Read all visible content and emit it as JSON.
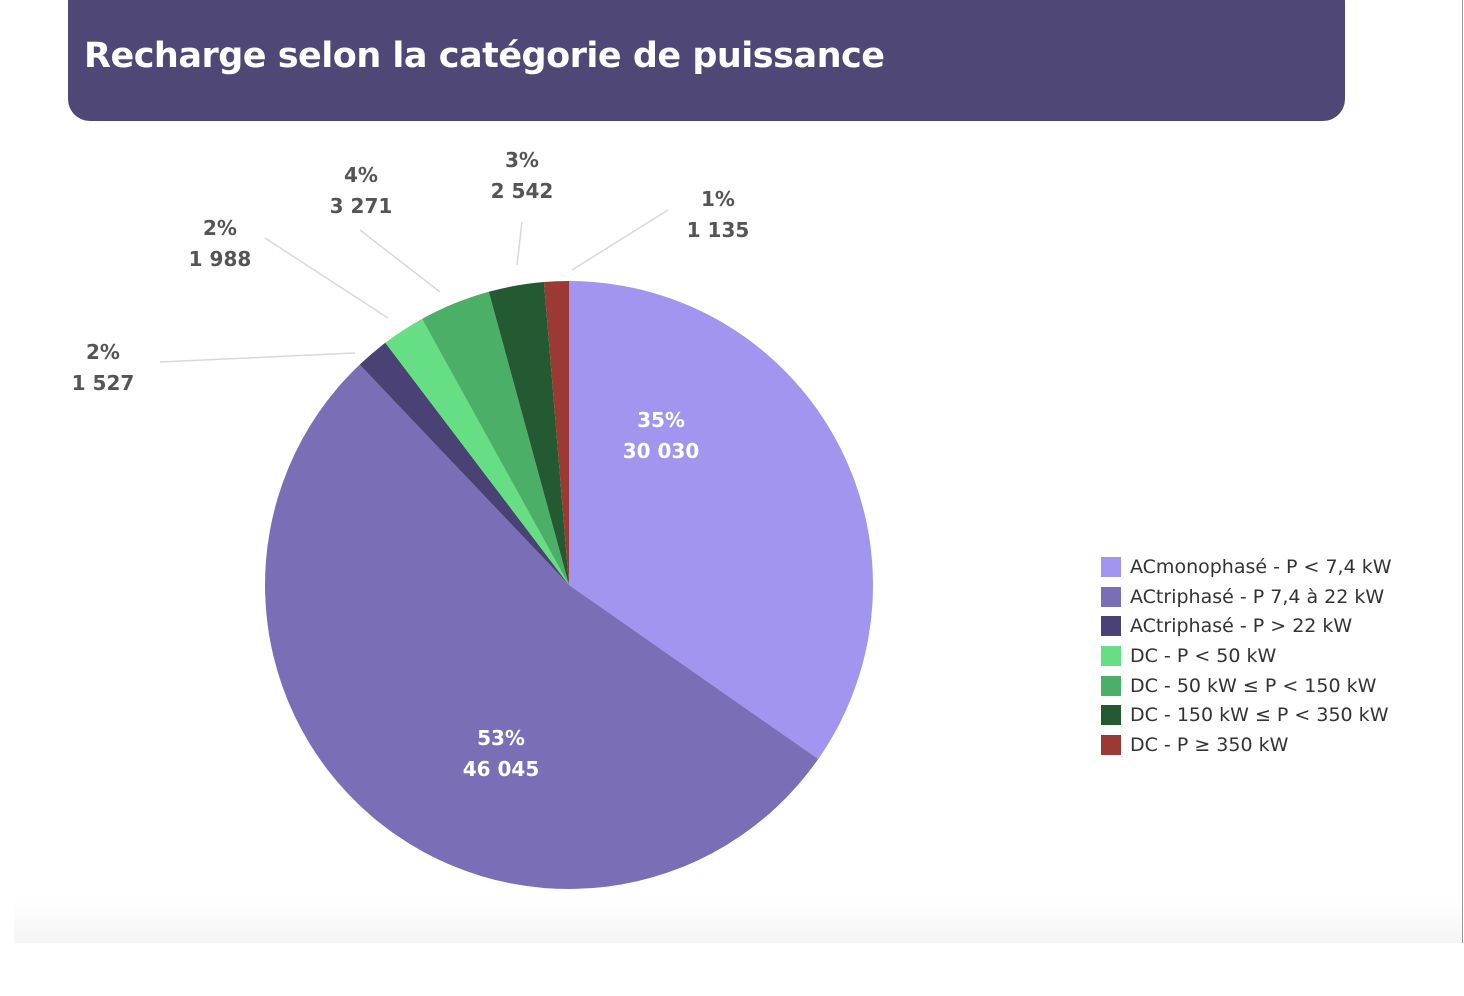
{
  "title": "Recharge selon la catégorie de puissance",
  "chart_data": {
    "type": "pie",
    "title": "Recharge selon la catégorie de puissance",
    "start": "top-clockwise",
    "legend_position": "right",
    "slices": [
      {
        "name": "ACmonophasé - P < 7,4 kW",
        "value": 30030,
        "value_label": "30 030",
        "pct_label": "35%",
        "color": "#a195ef"
      },
      {
        "name": "ACtriphasé - P 7,4 à 22 kW",
        "value": 46045,
        "value_label": "46 045",
        "pct_label": "53%",
        "color": "#7a6fb6"
      },
      {
        "name": "ACtriphasé - P > 22 kW",
        "value": 1527,
        "value_label": "1 527",
        "pct_label": "2%",
        "color": "#4a4274"
      },
      {
        "name": "DC - P < 50 kW",
        "value": 1988,
        "value_label": "1 988",
        "pct_label": "2%",
        "color": "#66df84"
      },
      {
        "name": "DC - 50 kW ≤ P < 150 kW",
        "value": 3271,
        "value_label": "3 271",
        "pct_label": "4%",
        "color": "#4caf68"
      },
      {
        "name": "DC - 150 kW  ≤ P < 350 kW",
        "value": 2542,
        "value_label": "2 542",
        "pct_label": "3%",
        "color": "#235a32"
      },
      {
        "name": "DC - P ≥ 350 kW",
        "value": 1135,
        "value_label": "1 135",
        "pct_label": "1%",
        "color": "#9b3a35"
      }
    ]
  }
}
